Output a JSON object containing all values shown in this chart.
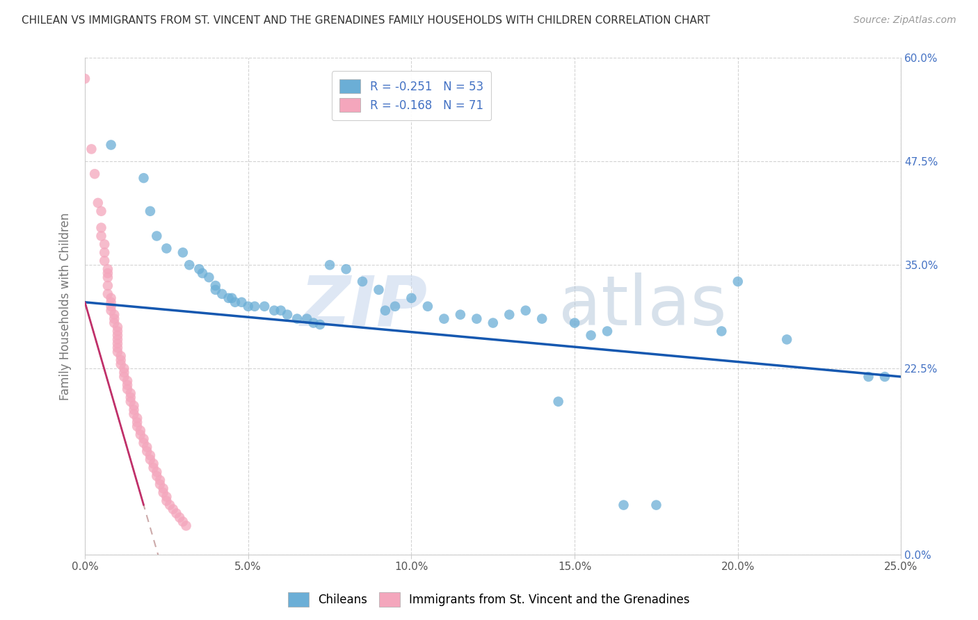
{
  "title": "CHILEAN VS IMMIGRANTS FROM ST. VINCENT AND THE GRENADINES FAMILY HOUSEHOLDS WITH CHILDREN CORRELATION CHART",
  "source": "Source: ZipAtlas.com",
  "ylabel": "Family Households with Children",
  "legend_label_blue": "Chileans",
  "legend_label_pink": "Immigrants from St. Vincent and the Grenadines",
  "r_blue": -0.251,
  "n_blue": 53,
  "r_pink": -0.168,
  "n_pink": 71,
  "xlim": [
    0.0,
    0.25
  ],
  "ylim": [
    0.0,
    0.6
  ],
  "xticks": [
    0.0,
    0.05,
    0.1,
    0.15,
    0.2,
    0.25
  ],
  "yticks": [
    0.0,
    0.225,
    0.35,
    0.475,
    0.6
  ],
  "ytick_labels_right": [
    "0.0%",
    "22.5%",
    "35.0%",
    "47.5%",
    "60.0%"
  ],
  "xtick_labels": [
    "0.0%",
    "5.0%",
    "10.0%",
    "15.0%",
    "20.0%",
    "25.0%"
  ],
  "color_blue": "#6baed6",
  "color_pink": "#f4a6bc",
  "line_color_blue": "#1558b0",
  "line_color_pink": "#c0306a",
  "line_color_pink_dashed": "#d0a0b8",
  "watermark_zip": "ZIP",
  "watermark_atlas": "atlas",
  "blue_points": [
    [
      0.008,
      0.495
    ],
    [
      0.018,
      0.455
    ],
    [
      0.02,
      0.415
    ],
    [
      0.022,
      0.385
    ],
    [
      0.025,
      0.37
    ],
    [
      0.03,
      0.365
    ],
    [
      0.032,
      0.35
    ],
    [
      0.035,
      0.345
    ],
    [
      0.036,
      0.34
    ],
    [
      0.038,
      0.335
    ],
    [
      0.04,
      0.325
    ],
    [
      0.04,
      0.32
    ],
    [
      0.042,
      0.315
    ],
    [
      0.044,
      0.31
    ],
    [
      0.045,
      0.31
    ],
    [
      0.046,
      0.305
    ],
    [
      0.048,
      0.305
    ],
    [
      0.05,
      0.3
    ],
    [
      0.052,
      0.3
    ],
    [
      0.055,
      0.3
    ],
    [
      0.058,
      0.295
    ],
    [
      0.06,
      0.295
    ],
    [
      0.062,
      0.29
    ],
    [
      0.065,
      0.285
    ],
    [
      0.068,
      0.285
    ],
    [
      0.07,
      0.28
    ],
    [
      0.072,
      0.278
    ],
    [
      0.075,
      0.35
    ],
    [
      0.08,
      0.345
    ],
    [
      0.085,
      0.33
    ],
    [
      0.09,
      0.32
    ],
    [
      0.092,
      0.295
    ],
    [
      0.095,
      0.3
    ],
    [
      0.1,
      0.31
    ],
    [
      0.105,
      0.3
    ],
    [
      0.11,
      0.285
    ],
    [
      0.115,
      0.29
    ],
    [
      0.12,
      0.285
    ],
    [
      0.125,
      0.28
    ],
    [
      0.13,
      0.29
    ],
    [
      0.135,
      0.295
    ],
    [
      0.14,
      0.285
    ],
    [
      0.145,
      0.185
    ],
    [
      0.15,
      0.28
    ],
    [
      0.155,
      0.265
    ],
    [
      0.16,
      0.27
    ],
    [
      0.165,
      0.06
    ],
    [
      0.175,
      0.06
    ],
    [
      0.195,
      0.27
    ],
    [
      0.2,
      0.33
    ],
    [
      0.215,
      0.26
    ],
    [
      0.24,
      0.215
    ],
    [
      0.245,
      0.215
    ]
  ],
  "pink_points": [
    [
      0.0,
      0.575
    ],
    [
      0.002,
      0.49
    ],
    [
      0.003,
      0.46
    ],
    [
      0.004,
      0.425
    ],
    [
      0.005,
      0.415
    ],
    [
      0.005,
      0.395
    ],
    [
      0.005,
      0.385
    ],
    [
      0.006,
      0.375
    ],
    [
      0.006,
      0.365
    ],
    [
      0.006,
      0.355
    ],
    [
      0.007,
      0.345
    ],
    [
      0.007,
      0.34
    ],
    [
      0.007,
      0.335
    ],
    [
      0.007,
      0.325
    ],
    [
      0.007,
      0.315
    ],
    [
      0.008,
      0.31
    ],
    [
      0.008,
      0.305
    ],
    [
      0.008,
      0.3
    ],
    [
      0.008,
      0.295
    ],
    [
      0.009,
      0.29
    ],
    [
      0.009,
      0.285
    ],
    [
      0.009,
      0.28
    ],
    [
      0.01,
      0.275
    ],
    [
      0.01,
      0.27
    ],
    [
      0.01,
      0.265
    ],
    [
      0.01,
      0.26
    ],
    [
      0.01,
      0.255
    ],
    [
      0.01,
      0.25
    ],
    [
      0.01,
      0.245
    ],
    [
      0.011,
      0.24
    ],
    [
      0.011,
      0.235
    ],
    [
      0.011,
      0.23
    ],
    [
      0.012,
      0.225
    ],
    [
      0.012,
      0.22
    ],
    [
      0.012,
      0.215
    ],
    [
      0.013,
      0.21
    ],
    [
      0.013,
      0.205
    ],
    [
      0.013,
      0.2
    ],
    [
      0.014,
      0.195
    ],
    [
      0.014,
      0.19
    ],
    [
      0.014,
      0.185
    ],
    [
      0.015,
      0.18
    ],
    [
      0.015,
      0.175
    ],
    [
      0.015,
      0.17
    ],
    [
      0.016,
      0.165
    ],
    [
      0.016,
      0.16
    ],
    [
      0.016,
      0.155
    ],
    [
      0.017,
      0.15
    ],
    [
      0.017,
      0.145
    ],
    [
      0.018,
      0.14
    ],
    [
      0.018,
      0.135
    ],
    [
      0.019,
      0.13
    ],
    [
      0.019,
      0.125
    ],
    [
      0.02,
      0.12
    ],
    [
      0.02,
      0.115
    ],
    [
      0.021,
      0.11
    ],
    [
      0.021,
      0.105
    ],
    [
      0.022,
      0.1
    ],
    [
      0.022,
      0.095
    ],
    [
      0.023,
      0.09
    ],
    [
      0.023,
      0.085
    ],
    [
      0.024,
      0.08
    ],
    [
      0.024,
      0.075
    ],
    [
      0.025,
      0.07
    ],
    [
      0.025,
      0.065
    ],
    [
      0.026,
      0.06
    ],
    [
      0.027,
      0.055
    ],
    [
      0.028,
      0.05
    ],
    [
      0.029,
      0.045
    ],
    [
      0.03,
      0.04
    ],
    [
      0.031,
      0.035
    ]
  ]
}
